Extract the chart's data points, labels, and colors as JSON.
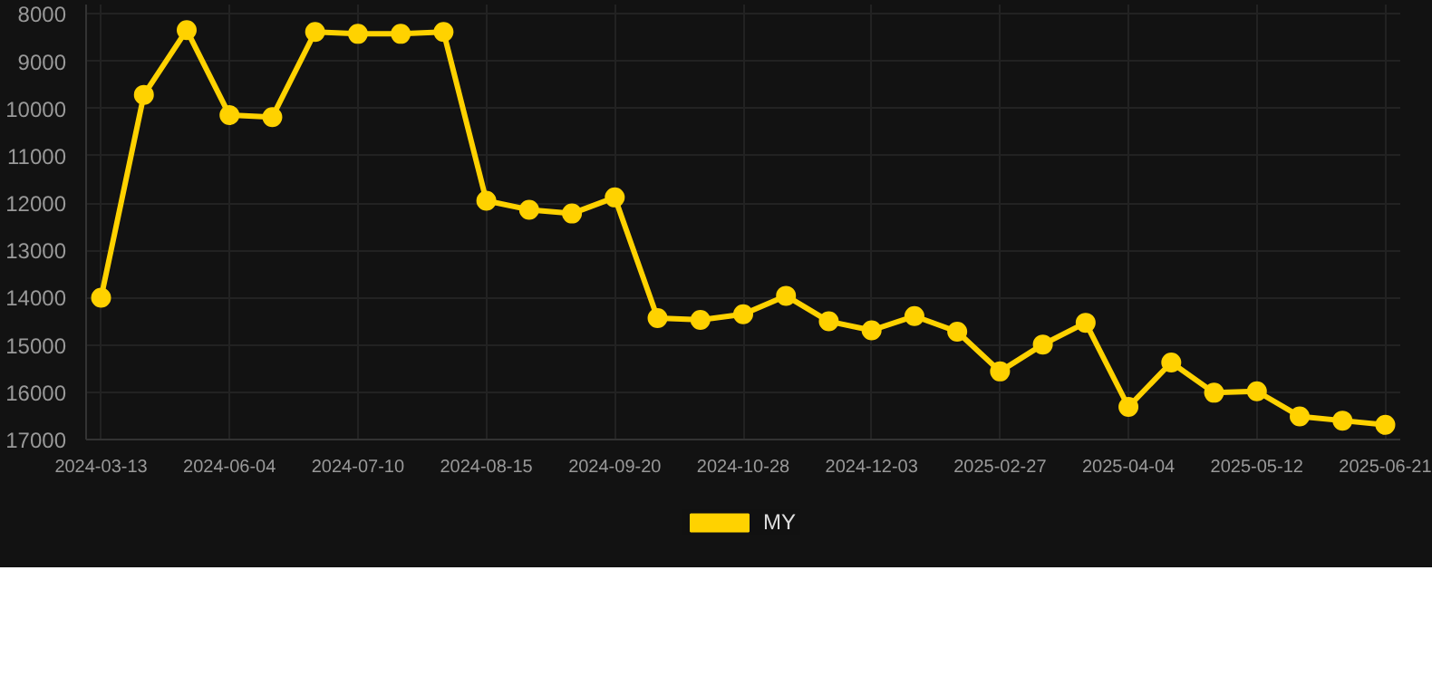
{
  "chart_data": {
    "type": "line",
    "categories": [
      "2024-03-13",
      null,
      null,
      "2024-06-04",
      null,
      null,
      "2024-07-10",
      null,
      null,
      "2024-08-15",
      null,
      null,
      "2024-09-20",
      null,
      null,
      "2024-10-28",
      null,
      null,
      "2024-12-03",
      null,
      null,
      "2025-02-27",
      null,
      null,
      "2025-04-04",
      null,
      null,
      "2025-05-12",
      null,
      null,
      "2025-06-21"
    ],
    "series": [
      {
        "name": "MY",
        "color": "#ffd200",
        "values": [
          14000,
          9710,
          8340,
          10140,
          10180,
          8380,
          8420,
          8420,
          8380,
          11950,
          12140,
          12220,
          11880,
          14430,
          14470,
          14350,
          13960,
          14500,
          14690,
          14390,
          14720,
          15560,
          14990,
          14530,
          16310,
          15370,
          16010,
          15980,
          16510,
          16600,
          16690
        ]
      }
    ],
    "ylim": [
      17000,
      7800
    ],
    "yticks": [
      8000,
      9000,
      10000,
      11000,
      12000,
      13000,
      14000,
      15000,
      16000,
      17000
    ],
    "grid": true,
    "legend": "bottom",
    "marker": "circle",
    "line_style": "solid"
  }
}
